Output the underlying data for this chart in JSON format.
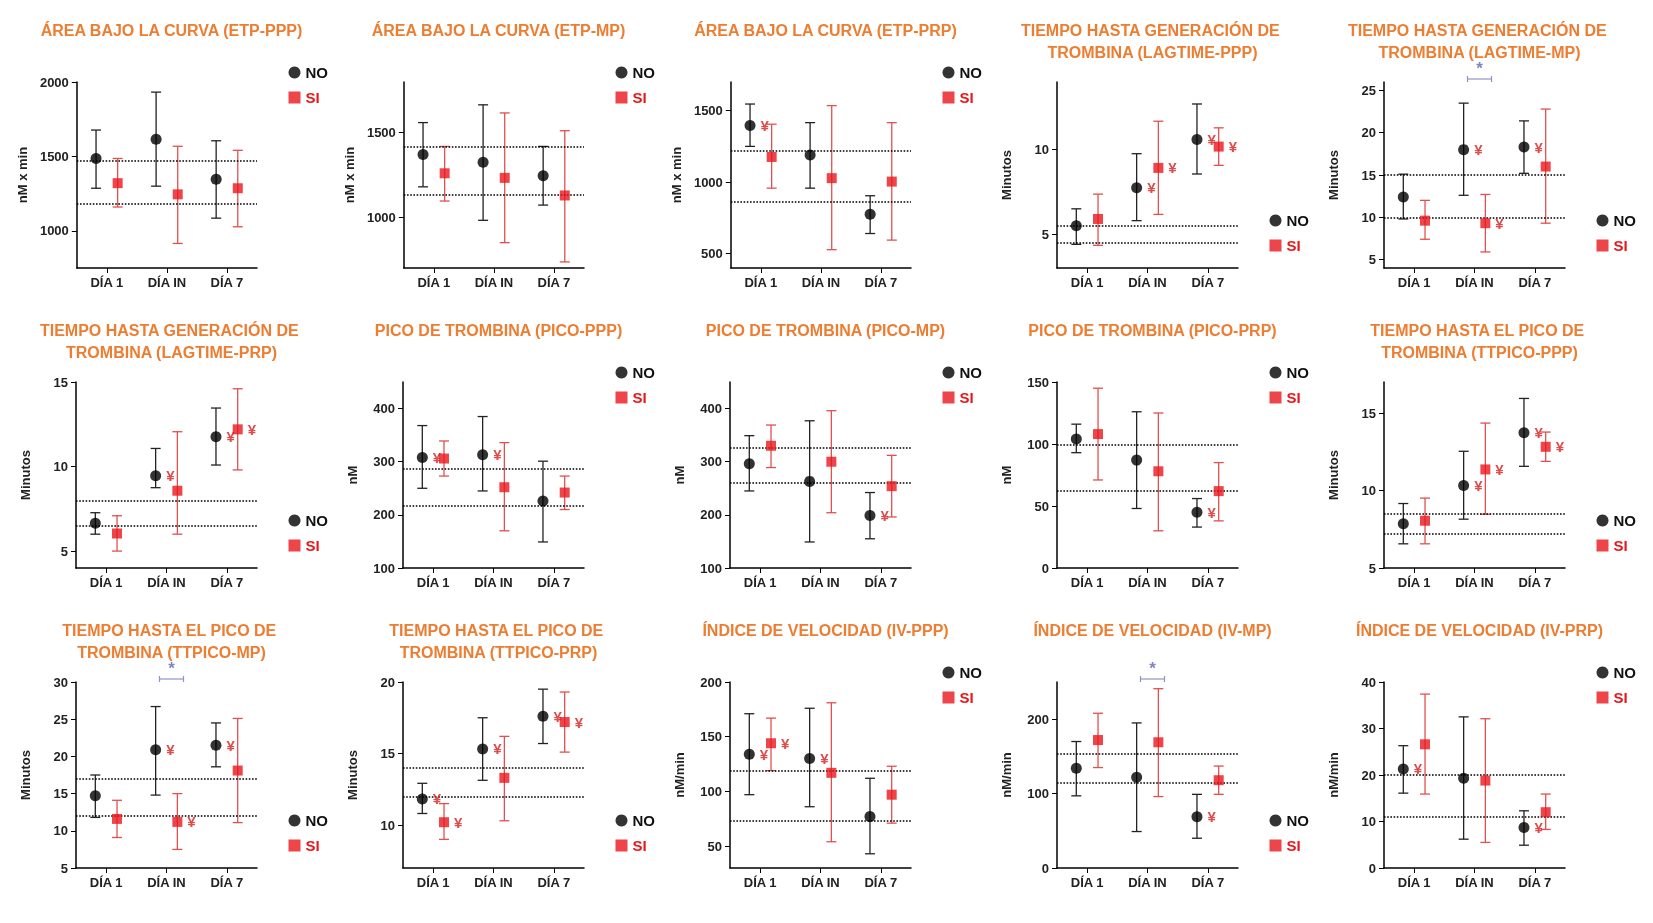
{
  "chart_data": [
    {
      "type": "scatter",
      "title": "ÁREA BAJO LA CURVA (ETP-PPP)",
      "ylabel": "nM x min",
      "categories": [
        "DÍA 1",
        "DÍA IN",
        "DÍA 7"
      ],
      "ylim": [
        750,
        2000
      ],
      "yticks": [
        1000,
        1500,
        2000
      ],
      "legend": "top right",
      "grid": false,
      "series": [
        {
          "name": "NO",
          "color": "#000000",
          "marker": "circle",
          "values": [
            1486,
            1615,
            1347
          ],
          "errors": [
            [
              1286,
              1677
            ],
            [
              1300,
              1932
            ],
            [
              1085,
              1605
            ]
          ]
        },
        {
          "name": "SI",
          "color": "#e8171b",
          "marker": "square",
          "values": [
            1320,
            1245,
            1286
          ],
          "errors": [
            [
              1160,
              1486
            ],
            [
              915,
              1568
            ],
            [
              1027,
              1541
            ]
          ]
        }
      ],
      "ref_lines": [
        {
          "axis": "y",
          "value": 1470,
          "line_style": "dotted"
        },
        {
          "axis": "y",
          "value": 1184,
          "line_style": "dotted"
        }
      ]
    },
    {
      "type": "scatter",
      "title": "ÁREA BAJO LA CURVA (ETP-MP)",
      "ylabel": "nM x min",
      "categories": [
        "DÍA 1",
        "DÍA IN",
        "DÍA 7"
      ],
      "ylim": [
        700,
        1800
      ],
      "yticks": [
        1000,
        1500
      ],
      "legend": "top right",
      "grid": false,
      "series": [
        {
          "name": "NO",
          "color": "#000000",
          "marker": "circle",
          "values": [
            1371,
            1326,
            1246
          ],
          "errors": [
            [
              1180,
              1560
            ],
            [
              982,
              1665
            ],
            [
              1072,
              1419
            ]
          ]
        },
        {
          "name": "SI",
          "color": "#e8171b",
          "marker": "square",
          "values": [
            1260,
            1233,
            1129
          ],
          "errors": [
            [
              1096,
              1419
            ],
            [
              850,
              1617
            ],
            [
              736,
              1512
            ]
          ]
        }
      ],
      "ref_lines": [
        {
          "axis": "y",
          "value": 1419,
          "line_style": "dotted"
        },
        {
          "axis": "y",
          "value": 1132,
          "line_style": "dotted"
        }
      ]
    },
    {
      "type": "scatter",
      "title": "ÁREA BAJO LA CURVA (ETP-PRP)",
      "ylabel": "nM x min",
      "categories": [
        "DÍA 1",
        "DÍA IN",
        "DÍA 7"
      ],
      "ylim": [
        400,
        1700
      ],
      "yticks": [
        500,
        1000,
        1500
      ],
      "legend": "top right",
      "grid": false,
      "series": [
        {
          "name": "NO",
          "color": "#000000",
          "marker": "circle",
          "values": [
            1396,
            1190,
            775
          ],
          "errors": [
            [
              1250,
              1546
            ],
            [
              958,
              1416
            ],
            [
              641,
              905
            ]
          ],
          "value_labels": [
            "¥",
            null,
            null
          ]
        },
        {
          "name": "SI",
          "color": "#e8171b",
          "marker": "square",
          "values": [
            1176,
            1028,
            1004
          ],
          "errors": [
            [
              958,
              1405
            ],
            [
              528,
              1535
            ],
            [
              595,
              1416
            ]
          ]
        }
      ],
      "ref_lines": [
        {
          "axis": "y",
          "value": 1218,
          "line_style": "dotted"
        },
        {
          "axis": "y",
          "value": 862,
          "line_style": "dotted"
        }
      ]
    },
    {
      "type": "scatter",
      "title": "TIEMPO HASTA GENERACIÓN DE TROMBINA (LAGTIME-PPP)",
      "ylabel": "Minutos",
      "categories": [
        "DÍA 1",
        "DÍA IN",
        "DÍA 7"
      ],
      "ylim": [
        3,
        14
      ],
      "yticks": [
        5,
        10
      ],
      "legend": "bottom right",
      "grid": false,
      "series": [
        {
          "name": "NO",
          "color": "#000000",
          "marker": "circle",
          "values": [
            5.5,
            7.75,
            10.6
          ],
          "errors": [
            [
              4.4,
              6.5
            ],
            [
              5.8,
              9.76
            ],
            [
              8.56,
              12.7
            ]
          ],
          "value_labels": [
            null,
            "¥",
            "¥"
          ]
        },
        {
          "name": "SI",
          "color": "#e8171b",
          "marker": "square",
          "values": [
            5.9,
            8.92,
            10.18
          ],
          "errors": [
            [
              4.34,
              7.37
            ],
            [
              6.17,
              11.68
            ],
            [
              9.07,
              11.29
            ]
          ],
          "value_labels": [
            null,
            "¥",
            "¥"
          ]
        }
      ],
      "ref_lines": [
        {
          "axis": "y",
          "value": 5.5,
          "line_style": "dotted"
        },
        {
          "axis": "y",
          "value": 4.5,
          "line_style": "dotted"
        }
      ]
    },
    {
      "type": "scatter",
      "title": "TIEMPO HASTA GENERACIÓN DE TROMBINA (LAGTIME-MP)",
      "ylabel": "Minutos",
      "categories": [
        "DÍA 1",
        "DÍA IN",
        "DÍA 7"
      ],
      "ylim": [
        4,
        26
      ],
      "yticks": [
        5,
        10,
        15,
        20,
        25
      ],
      "legend": "bottom right",
      "grid": false,
      "series": [
        {
          "name": "NO",
          "color": "#000000",
          "marker": "circle",
          "values": [
            12.4,
            18.0,
            18.3
          ],
          "errors": [
            [
              9.8,
              15.1
            ],
            [
              12.6,
              23.5
            ],
            [
              15.2,
              21.4
            ]
          ],
          "value_labels": [
            null,
            "¥",
            "¥"
          ]
        },
        {
          "name": "SI",
          "color": "#e8171b",
          "marker": "square",
          "values": [
            9.6,
            9.3,
            16.0
          ],
          "errors": [
            [
              7.4,
              12.0
            ],
            [
              5.9,
              12.7
            ],
            [
              9.3,
              22.8
            ]
          ],
          "value_labels": [
            null,
            "¥",
            null
          ]
        }
      ],
      "ref_lines": [
        {
          "axis": "y",
          "value": 15,
          "line_style": "dotted"
        },
        {
          "axis": "y",
          "value": 10,
          "line_style": "dotted"
        }
      ],
      "annotations": [
        "*"
      ]
    },
    {
      "type": "scatter",
      "title": "TIEMPO HASTA GENERACIÓN DE TROMBINA (LAGTIME-PRP)",
      "ylabel": "Minutos",
      "categories": [
        "DÍA 1",
        "DÍA IN",
        "DÍA 7"
      ],
      "ylim": [
        4,
        15
      ],
      "yticks": [
        5,
        10,
        15
      ],
      "legend": "bottom right",
      "grid": false,
      "series": [
        {
          "name": "NO",
          "color": "#000000",
          "marker": "circle",
          "values": [
            6.64,
            9.46,
            11.76
          ],
          "errors": [
            [
              6.0,
              7.27
            ],
            [
              8.75,
              11.07
            ],
            [
              10.09,
              13.46
            ]
          ],
          "value_labels": [
            null,
            "¥",
            "¥"
          ]
        },
        {
          "name": "SI",
          "color": "#e8171b",
          "marker": "square",
          "values": [
            6.04,
            8.57,
            12.2
          ],
          "errors": [
            [
              5.0,
              7.09
            ],
            [
              6.0,
              12.06
            ],
            [
              9.8,
              14.6
            ]
          ],
          "value_labels": [
            null,
            null,
            "¥"
          ]
        }
      ],
      "ref_lines": [
        {
          "axis": "y",
          "value": 8,
          "line_style": "dotted"
        },
        {
          "axis": "y",
          "value": 6.5,
          "line_style": "dotted"
        }
      ]
    },
    {
      "type": "scatter",
      "title": "PICO DE TROMBINA (PICO-PPP)",
      "ylabel": "nM",
      "categories": [
        "DÍA 1",
        "DÍA IN",
        "DÍA 7"
      ],
      "ylim": [
        100,
        450
      ],
      "yticks": [
        100,
        200,
        300,
        400
      ],
      "legend": "top right",
      "grid": false,
      "series": [
        {
          "name": "NO",
          "color": "#000000",
          "marker": "circle",
          "values": [
            308,
            313,
            226
          ],
          "errors": [
            [
              250,
              368
            ],
            [
              245,
              385
            ],
            [
              149,
              301
            ]
          ],
          "value_labels": [
            "¥",
            "¥",
            null
          ]
        },
        {
          "name": "SI",
          "color": "#e8171b",
          "marker": "square",
          "values": [
            306,
            252,
            242
          ],
          "errors": [
            [
              273,
              339
            ],
            [
              170,
              336
            ],
            [
              210,
              273
            ]
          ]
        }
      ],
      "ref_lines": [
        {
          "axis": "y",
          "value": 287,
          "line_style": "dotted"
        },
        {
          "axis": "y",
          "value": 217,
          "line_style": "dotted"
        }
      ]
    },
    {
      "type": "scatter",
      "title": "PICO DE TROMBINA (PICO-MP)",
      "ylabel": "nM",
      "categories": [
        "DÍA 1",
        "DÍA IN",
        "DÍA 7"
      ],
      "ylim": [
        100,
        450
      ],
      "yticks": [
        100,
        200,
        300,
        400
      ],
      "legend": "top right",
      "grid": false,
      "series": [
        {
          "name": "NO",
          "color": "#000000",
          "marker": "circle",
          "values": [
            296,
            263,
            199
          ],
          "errors": [
            [
              245,
              349
            ],
            [
              149,
              377
            ],
            [
              155,
              242
            ]
          ],
          "value_labels": [
            null,
            null,
            "¥"
          ]
        },
        {
          "name": "SI",
          "color": "#e8171b",
          "marker": "square",
          "values": [
            330,
            300,
            254
          ],
          "errors": [
            [
              289,
              369
            ],
            [
              204,
              396
            ],
            [
              196,
              312
            ]
          ]
        }
      ],
      "ref_lines": [
        {
          "axis": "y",
          "value": 327,
          "line_style": "dotted"
        },
        {
          "axis": "y",
          "value": 260,
          "line_style": "dotted"
        }
      ]
    },
    {
      "type": "scatter",
      "title": "PICO DE TROMBINA (PICO-PRP)",
      "ylabel": "nM",
      "categories": [
        "DÍA 1",
        "DÍA IN",
        "DÍA 7"
      ],
      "ylim": [
        0,
        150
      ],
      "yticks": [
        0,
        50,
        100,
        150
      ],
      "legend": "top right",
      "grid": false,
      "series": [
        {
          "name": "NO",
          "color": "#000000",
          "marker": "circle",
          "values": [
            104,
            87,
            45
          ],
          "errors": [
            [
              93,
              116
            ],
            [
              48,
              126
            ],
            [
              33,
              56
            ]
          ],
          "value_labels": [
            null,
            null,
            "¥"
          ]
        },
        {
          "name": "SI",
          "color": "#e8171b",
          "marker": "square",
          "values": [
            108,
            78,
            62
          ],
          "errors": [
            [
              71,
              145
            ],
            [
              30,
              125
            ],
            [
              38,
              85
            ]
          ]
        }
      ],
      "ref_lines": [
        {
          "axis": "y",
          "value": 99,
          "line_style": "dotted"
        },
        {
          "axis": "y",
          "value": 62,
          "line_style": "dotted"
        }
      ]
    },
    {
      "type": "scatter",
      "title": "TIEMPO HASTA EL PICO DE TROMBINA (TTPICO-PPP)",
      "ylabel": "Minutos",
      "categories": [
        "DÍA 1",
        "DÍA IN",
        "DÍA 7"
      ],
      "ylim": [
        5,
        17
      ],
      "yticks": [
        5,
        10,
        15
      ],
      "legend": "bottom right",
      "grid": false,
      "series": [
        {
          "name": "NO",
          "color": "#000000",
          "marker": "circle",
          "values": [
            7.86,
            10.32,
            13.73
          ],
          "errors": [
            [
              6.56,
              9.16
            ],
            [
              8.15,
              12.53
            ],
            [
              11.56,
              15.94
            ]
          ],
          "value_labels": [
            null,
            "¥",
            "¥"
          ]
        },
        {
          "name": "SI",
          "color": "#e8171b",
          "marker": "square",
          "values": [
            8.05,
            11.36,
            12.82
          ],
          "errors": [
            [
              6.56,
              9.51
            ],
            [
              8.47,
              14.35
            ],
            [
              11.88,
              13.77
            ]
          ],
          "value_labels": [
            null,
            "¥",
            "¥"
          ]
        }
      ],
      "ref_lines": [
        {
          "axis": "y",
          "value": 8.5,
          "line_style": "dotted"
        },
        {
          "axis": "y",
          "value": 7.2,
          "line_style": "dotted"
        }
      ]
    },
    {
      "type": "scatter",
      "title": "TIEMPO HASTA EL PICO DE TROMBINA (TTPICO-MP)",
      "ylabel": "Minutos",
      "categories": [
        "DÍA 1",
        "DÍA IN",
        "DÍA 7"
      ],
      "ylim": [
        5,
        30
      ],
      "yticks": [
        5,
        10,
        15,
        20,
        25,
        30
      ],
      "legend": "bottom right",
      "grid": false,
      "series": [
        {
          "name": "NO",
          "color": "#000000",
          "marker": "circle",
          "values": [
            14.7,
            20.9,
            21.5
          ],
          "errors": [
            [
              11.8,
              17.5
            ],
            [
              14.8,
              26.7
            ],
            [
              18.6,
              24.5
            ]
          ],
          "value_labels": [
            null,
            "¥",
            "¥"
          ]
        },
        {
          "name": "SI",
          "color": "#e8171b",
          "marker": "square",
          "values": [
            11.6,
            11.2,
            18.1
          ],
          "errors": [
            [
              9.1,
              14.1
            ],
            [
              7.5,
              15.0
            ],
            [
              11.1,
              25.1
            ]
          ],
          "value_labels": [
            null,
            "¥",
            null
          ]
        }
      ],
      "ref_lines": [
        {
          "axis": "y",
          "value": 17,
          "line_style": "dotted"
        },
        {
          "axis": "y",
          "value": 12,
          "line_style": "dotted"
        }
      ],
      "annotations": [
        "*"
      ]
    },
    {
      "type": "scatter",
      "title": "TIEMPO HASTA EL PICO DE TROMBINA (TTPICO-PRP)",
      "ylabel": "Minutos",
      "categories": [
        "DÍA 1",
        "DÍA IN",
        "DÍA 7"
      ],
      "ylim": [
        7,
        20
      ],
      "yticks": [
        10,
        15,
        20
      ],
      "legend": "bottom right",
      "grid": false,
      "series": [
        {
          "name": "NO",
          "color": "#000000",
          "marker": "circle",
          "values": [
            11.83,
            15.32,
            17.6
          ],
          "errors": [
            [
              10.81,
              12.92
            ],
            [
              13.13,
              17.5
            ],
            [
              15.7,
              19.5
            ]
          ],
          "value_labels": [
            "¥",
            "¥",
            "¥"
          ]
        },
        {
          "name": "SI",
          "color": "#e8171b",
          "marker": "square",
          "values": [
            10.2,
            13.3,
            17.2
          ],
          "errors": [
            [
              9.0,
              11.5
            ],
            [
              10.3,
              16.2
            ],
            [
              15.1,
              19.3
            ]
          ],
          "value_labels": [
            "¥",
            null,
            "¥"
          ]
        }
      ],
      "ref_lines": [
        {
          "axis": "y",
          "value": 14,
          "line_style": "dotted"
        },
        {
          "axis": "y",
          "value": 12,
          "line_style": "dotted"
        }
      ]
    },
    {
      "type": "scatter",
      "title": "ÍNDICE DE VELOCIDAD (IV-PPP)",
      "ylabel": "nM/min",
      "categories": [
        "DÍA 1",
        "DÍA IN",
        "DÍA 7"
      ],
      "ylim": [
        30,
        200
      ],
      "yticks": [
        50,
        100,
        150,
        200
      ],
      "legend": "top right",
      "grid": false,
      "series": [
        {
          "name": "NO",
          "color": "#000000",
          "marker": "circle",
          "values": [
            134,
            130,
            77
          ],
          "errors": [
            [
              97,
              171
            ],
            [
              86,
              176
            ],
            [
              43,
              112
            ]
          ],
          "value_labels": [
            "¥",
            "¥",
            null
          ]
        },
        {
          "name": "SI",
          "color": "#e8171b",
          "marker": "square",
          "values": [
            144,
            117,
            97
          ],
          "errors": [
            [
              119,
              167
            ],
            [
              54,
              181
            ],
            [
              71,
              123
            ]
          ],
          "value_labels": [
            "¥",
            null,
            null
          ]
        }
      ],
      "ref_lines": [
        {
          "axis": "y",
          "value": 118.5,
          "line_style": "dotted"
        },
        {
          "axis": "y",
          "value": 73.6,
          "line_style": "dotted"
        }
      ]
    },
    {
      "type": "scatter",
      "title": "ÍNDICE DE VELOCIDAD (IV-MP)",
      "ylabel": "nM/min",
      "categories": [
        "DÍA 1",
        "DÍA IN",
        "DÍA 7"
      ],
      "ylim": [
        0,
        250
      ],
      "yticks": [
        0,
        100,
        200
      ],
      "legend": "bottom right",
      "grid": false,
      "series": [
        {
          "name": "NO",
          "color": "#000000",
          "marker": "circle",
          "values": [
            134,
            122,
            69
          ],
          "errors": [
            [
              97,
              170
            ],
            [
              49,
              195
            ],
            [
              40,
              99
            ]
          ],
          "value_labels": [
            null,
            null,
            "¥"
          ]
        },
        {
          "name": "SI",
          "color": "#e8171b",
          "marker": "square",
          "values": [
            172,
            169,
            118
          ],
          "errors": [
            [
              135,
              208
            ],
            [
              96,
              241
            ],
            [
              99,
              137
            ]
          ]
        }
      ],
      "ref_lines": [
        {
          "axis": "y",
          "value": 154,
          "line_style": "dotted"
        },
        {
          "axis": "y",
          "value": 114,
          "line_style": "dotted"
        }
      ],
      "annotations": [
        "*"
      ]
    },
    {
      "type": "scatter",
      "title": "ÍNDICE DE VELOCIDAD (IV-PRP)",
      "ylabel": "nM/min",
      "categories": [
        "DÍA 1",
        "DÍA IN",
        "DÍA 7"
      ],
      "ylim": [
        0,
        40
      ],
      "yticks": [
        0,
        10,
        20,
        30,
        40
      ],
      "legend": "top right",
      "grid": false,
      "series": [
        {
          "name": "NO",
          "color": "#000000",
          "marker": "circle",
          "values": [
            21.3,
            19.3,
            8.7
          ],
          "errors": [
            [
              16.1,
              26.3
            ],
            [
              6.2,
              32.5
            ],
            [
              4.9,
              12.3
            ]
          ],
          "value_labels": [
            "¥",
            null,
            "¥"
          ]
        },
        {
          "name": "SI",
          "color": "#e8171b",
          "marker": "square",
          "values": [
            26.6,
            18.8,
            12.0
          ],
          "errors": [
            [
              15.9,
              37.4
            ],
            [
              5.5,
              32.1
            ],
            [
              8.3,
              15.9
            ]
          ]
        }
      ],
      "ref_lines": [
        {
          "axis": "y",
          "value": 20,
          "line_style": "dotted"
        },
        {
          "axis": "y",
          "value": 11,
          "line_style": "dotted"
        }
      ]
    }
  ]
}
